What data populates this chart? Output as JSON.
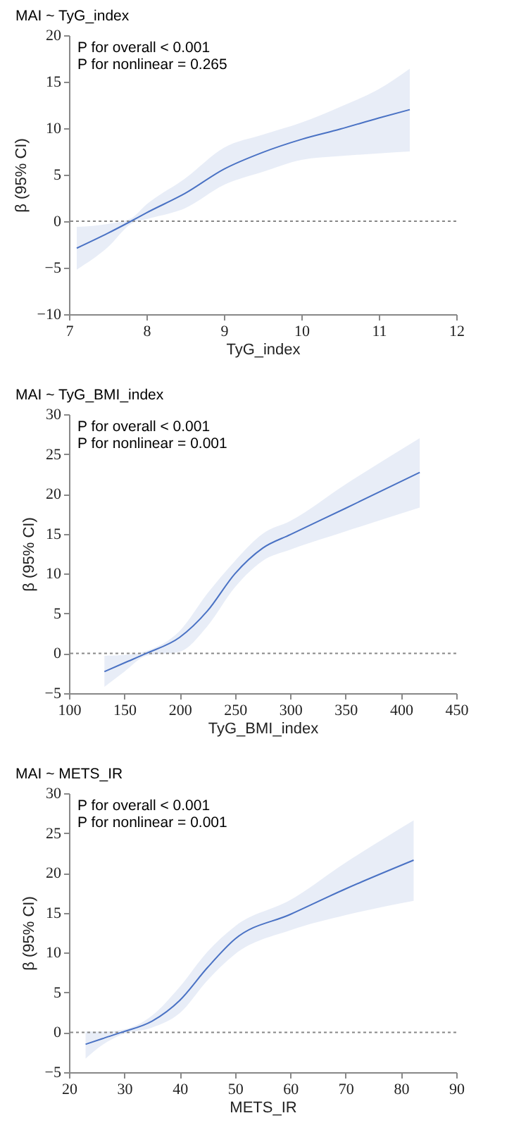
{
  "chart_data": [
    {
      "type": "line",
      "title": "MAI ~ TyG_index",
      "xlabel": "TyG_index",
      "ylabel": "β (95% CI)",
      "annotations": [
        "P for overall < 0.001",
        "P for nonlinear = 0.265"
      ],
      "x": [
        7.1,
        7.5,
        7.8,
        8.0,
        8.5,
        9.0,
        9.5,
        10.0,
        10.5,
        11.0,
        11.4
      ],
      "series": [
        {
          "color": "#4a72c4",
          "values": [
            -2.9,
            -1.3,
            0,
            0.9,
            3.0,
            5.6,
            7.4,
            8.8,
            9.9,
            11.1,
            12.0
          ],
          "lower": [
            -5.2,
            -2.8,
            -0.3,
            0.2,
            1.4,
            3.9,
            5.3,
            6.6,
            7.0,
            7.3,
            7.5
          ],
          "upper": [
            -0.6,
            -0.3,
            0.3,
            1.8,
            4.6,
            7.9,
            9.3,
            10.6,
            12.3,
            14.2,
            16.4
          ]
        }
      ],
      "xlim": [
        7,
        12
      ],
      "xticks": [
        7,
        8,
        9,
        10,
        11,
        12
      ],
      "ylim": [
        -10,
        20
      ],
      "yticks": [
        -10,
        -5,
        0,
        5,
        10,
        15,
        20
      ],
      "grid": false,
      "ref_lines": [
        {
          "axis": "y",
          "value": 0,
          "line_style": "dotted"
        }
      ]
    },
    {
      "type": "line",
      "title": "MAI ~ TyG_BMI_index",
      "xlabel": "TyG_BMI_index",
      "ylabel": "β (95% CI)",
      "annotations": [
        "P for overall < 0.001",
        "P for nonlinear = 0.001"
      ],
      "x": [
        132,
        150,
        170,
        200,
        225,
        250,
        275,
        300,
        350,
        417
      ],
      "series": [
        {
          "color": "#4a72c4",
          "values": [
            -2.3,
            -1.2,
            0,
            2.0,
            5.3,
            10.0,
            13.2,
            14.9,
            18.2,
            22.7
          ],
          "lower": [
            -4.2,
            -2.3,
            -0.3,
            0.2,
            3.4,
            8.3,
            11.6,
            13.0,
            15.3,
            18.3
          ],
          "upper": [
            -0.3,
            -0.2,
            0.3,
            2.8,
            7.5,
            11.6,
            15.0,
            16.6,
            21.2,
            27.0
          ]
        }
      ],
      "xlim": [
        100,
        450
      ],
      "xticks": [
        100,
        150,
        200,
        250,
        300,
        350,
        400,
        450
      ],
      "ylim": [
        -5,
        30
      ],
      "yticks": [
        -5,
        0,
        5,
        10,
        15,
        20,
        25,
        30
      ],
      "grid": false,
      "ref_lines": [
        {
          "axis": "y",
          "value": 0,
          "line_style": "dotted"
        }
      ]
    },
    {
      "type": "line",
      "title": "MAI ~ METS_IR",
      "xlabel": "METS_IR",
      "ylabel": "β (95% CI)",
      "annotations": [
        "P for overall < 0.001",
        "P for nonlinear = 0.001"
      ],
      "x": [
        23,
        26,
        29.5,
        35,
        40,
        45,
        50,
        60,
        70,
        82.3
      ],
      "series": [
        {
          "color": "#4a72c4",
          "values": [
            -1.5,
            -0.8,
            0,
            1.4,
            4.0,
            8.1,
            11.7,
            14.8,
            18.0,
            21.6
          ],
          "lower": [
            -3.3,
            -1.6,
            -0.3,
            0.6,
            2.4,
            6.5,
            9.8,
            12.8,
            14.7,
            16.5
          ],
          "upper": [
            0.1,
            0.1,
            0.3,
            2.1,
            5.7,
            10.1,
            13.3,
            16.6,
            21.3,
            26.6
          ]
        }
      ],
      "xlim": [
        20,
        90
      ],
      "xticks": [
        20,
        30,
        40,
        50,
        60,
        70,
        80,
        90
      ],
      "ylim": [
        -5,
        30
      ],
      "yticks": [
        -5,
        0,
        5,
        10,
        15,
        20,
        25,
        30
      ],
      "grid": false,
      "ref_lines": [
        {
          "axis": "y",
          "value": 0,
          "line_style": "dotted"
        }
      ]
    }
  ]
}
